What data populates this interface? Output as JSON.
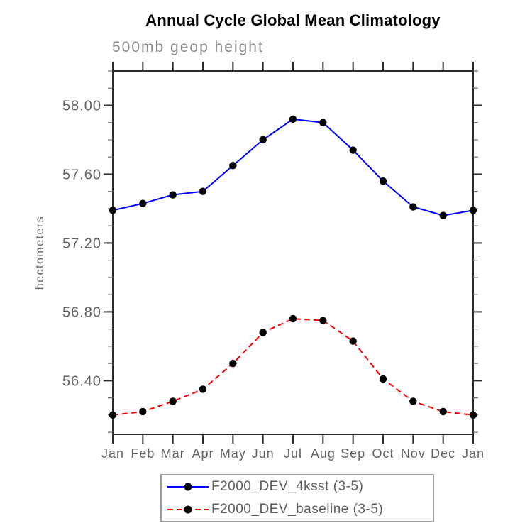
{
  "page": {
    "background": "#ffffff"
  },
  "header": {
    "title": "Annual Cycle Global Mean Climatology",
    "subtitle": "500mb geop height"
  },
  "chart_data": {
    "type": "line",
    "title": "Annual Cycle Global Mean Climatology",
    "subtitle": "500mb geop height",
    "xlabel": "",
    "ylabel": "hectometers",
    "categories": [
      "Jan",
      "Feb",
      "Mar",
      "Apr",
      "May",
      "Jun",
      "Jul",
      "Aug",
      "Sep",
      "Oct",
      "Nov",
      "Dec",
      "Jan"
    ],
    "series": [
      {
        "name": "F2000_DEV_4ksst (3-5)",
        "line_color": "#0000ff",
        "line_style": "solid",
        "marker": "circle",
        "marker_color": "#000000",
        "values": [
          57.39,
          57.43,
          57.48,
          57.5,
          57.65,
          57.8,
          57.92,
          57.9,
          57.74,
          57.56,
          57.41,
          57.36,
          57.39
        ]
      },
      {
        "name": "F2000_DEV_baseline (3-5)",
        "line_color": "#ff0000",
        "line_style": "dashed",
        "marker": "circle",
        "marker_color": "#000000",
        "values": [
          56.2,
          56.22,
          56.28,
          56.35,
          56.5,
          56.68,
          56.76,
          56.75,
          56.63,
          56.41,
          56.28,
          56.22,
          56.2
        ]
      }
    ],
    "ylim": [
      56.088,
      58.2
    ],
    "yticks_major": [
      56.4,
      56.8,
      57.2,
      57.6,
      58.0
    ],
    "ytick_labels": [
      "56.40",
      "56.80",
      "57.20",
      "57.60",
      "58.00"
    ],
    "ytick_minor_step": 0.1,
    "grid": false,
    "legend_position": "bottom",
    "frame": true
  },
  "colors": {
    "axis": "#2b2b2b",
    "minor_tick": "#6e6e6e",
    "tick_label": "#636363",
    "legend_border": "#9b9b9b",
    "legend_text": "#5e5e5e"
  }
}
